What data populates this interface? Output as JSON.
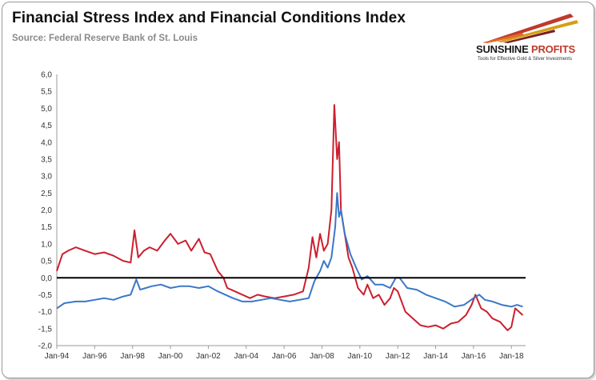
{
  "header": {
    "title": "Financial Stress Index and Financial Conditions Index",
    "source": "Source: Federal Reserve Bank of St. Louis"
  },
  "logo": {
    "name_main": "SUNSHINE",
    "name_accent": "PROFITS",
    "tagline": "Tools for Effective Gold & Silver Investments"
  },
  "colors": {
    "stress": "#cc1f2e",
    "conditions": "#3a78c8",
    "zero_line": "#000000",
    "logo_accent": "#c0392b"
  },
  "chart_data": {
    "type": "line",
    "title": "Financial Stress Index and Financial Conditions Index",
    "xlabel": "",
    "ylabel": "",
    "x_tick_labels": [
      "Jan-94",
      "Jan-96",
      "Jan-98",
      "Jan-00",
      "Jan-02",
      "Jan-04",
      "Jan-06",
      "Jan-08",
      "Jan-10",
      "Jan-12",
      "Jan-14",
      "Jan-16",
      "Jan-18"
    ],
    "y_tick_labels": [
      "6,0",
      "5,5",
      "5,0",
      "4,5",
      "4,0",
      "3,5",
      "3,0",
      "2,5",
      "2,0",
      "1,5",
      "1,0",
      "0,5",
      "0,0",
      "-0,5",
      "-1,0",
      "-1,5",
      "-2,0"
    ],
    "xlim": [
      1994.0,
      2018.75
    ],
    "ylim": [
      -2.0,
      6.0
    ],
    "zero_line": 0.0,
    "legend": "none",
    "series": [
      {
        "name": "Financial Stress Index",
        "color": "#cc1f2e",
        "x": [
          1994.0,
          1994.3,
          1994.6,
          1995.0,
          1995.5,
          1996.0,
          1996.5,
          1997.0,
          1997.5,
          1997.9,
          1998.1,
          1998.3,
          1998.6,
          1998.9,
          1999.3,
          1999.7,
          2000.0,
          2000.4,
          2000.8,
          2001.1,
          2001.5,
          2001.8,
          2002.1,
          2002.5,
          2002.8,
          2003.0,
          2003.4,
          2003.8,
          2004.2,
          2004.6,
          2005.0,
          2005.5,
          2006.0,
          2006.5,
          2007.0,
          2007.3,
          2007.5,
          2007.7,
          2007.9,
          2008.1,
          2008.3,
          2008.5,
          2008.65,
          2008.8,
          2008.9,
          2009.0,
          2009.2,
          2009.4,
          2009.6,
          2009.9,
          2010.2,
          2010.4,
          2010.7,
          2011.0,
          2011.3,
          2011.6,
          2011.8,
          2012.0,
          2012.4,
          2012.8,
          2013.2,
          2013.6,
          2014.0,
          2014.4,
          2014.8,
          2015.2,
          2015.6,
          2015.9,
          2016.1,
          2016.4,
          2016.7,
          2017.0,
          2017.4,
          2017.8,
          2018.0,
          2018.2,
          2018.4,
          2018.6
        ],
        "y": [
          0.2,
          0.7,
          0.8,
          0.9,
          0.8,
          0.7,
          0.75,
          0.65,
          0.5,
          0.45,
          1.4,
          0.6,
          0.8,
          0.9,
          0.8,
          1.1,
          1.3,
          1.0,
          1.1,
          0.8,
          1.15,
          0.75,
          0.7,
          0.2,
          0.0,
          -0.3,
          -0.4,
          -0.5,
          -0.6,
          -0.5,
          -0.55,
          -0.6,
          -0.55,
          -0.5,
          -0.4,
          0.3,
          1.2,
          0.6,
          1.3,
          0.8,
          1.0,
          2.0,
          5.1,
          3.5,
          4.0,
          2.0,
          1.3,
          0.6,
          0.3,
          -0.3,
          -0.5,
          -0.2,
          -0.6,
          -0.5,
          -0.8,
          -0.6,
          -0.3,
          -0.4,
          -1.0,
          -1.2,
          -1.4,
          -1.45,
          -1.4,
          -1.5,
          -1.35,
          -1.3,
          -1.1,
          -0.8,
          -0.5,
          -0.9,
          -1.0,
          -1.2,
          -1.3,
          -1.55,
          -1.45,
          -0.9,
          -1.0,
          -1.1
        ]
      },
      {
        "name": "Financial Conditions Index",
        "color": "#3a78c8",
        "x": [
          1994.0,
          1994.4,
          1995.0,
          1995.5,
          1996.0,
          1996.5,
          1997.0,
          1997.5,
          1997.9,
          1998.2,
          1998.4,
          1998.7,
          1999.0,
          1999.5,
          2000.0,
          2000.5,
          2001.0,
          2001.5,
          2002.0,
          2002.5,
          2002.9,
          2003.3,
          2003.8,
          2004.3,
          2004.8,
          2005.3,
          2005.8,
          2006.3,
          2006.8,
          2007.3,
          2007.6,
          2007.9,
          2008.1,
          2008.3,
          2008.5,
          2008.7,
          2008.8,
          2008.9,
          2009.0,
          2009.2,
          2009.5,
          2009.8,
          2010.1,
          2010.4,
          2010.8,
          2011.2,
          2011.6,
          2011.9,
          2012.1,
          2012.5,
          2013.0,
          2013.5,
          2014.0,
          2014.5,
          2015.0,
          2015.5,
          2016.0,
          2016.3,
          2016.6,
          2017.0,
          2017.5,
          2018.0,
          2018.3,
          2018.6
        ],
        "y": [
          -0.9,
          -0.75,
          -0.7,
          -0.7,
          -0.65,
          -0.6,
          -0.65,
          -0.55,
          -0.5,
          -0.05,
          -0.35,
          -0.3,
          -0.25,
          -0.2,
          -0.3,
          -0.25,
          -0.25,
          -0.3,
          -0.25,
          -0.4,
          -0.5,
          -0.6,
          -0.7,
          -0.7,
          -0.65,
          -0.6,
          -0.65,
          -0.7,
          -0.65,
          -0.6,
          -0.1,
          0.2,
          0.5,
          0.3,
          0.6,
          1.5,
          2.5,
          1.8,
          2.0,
          1.3,
          0.7,
          0.3,
          -0.05,
          0.05,
          -0.2,
          -0.2,
          -0.3,
          0.0,
          0.0,
          -0.3,
          -0.35,
          -0.5,
          -0.6,
          -0.7,
          -0.85,
          -0.8,
          -0.6,
          -0.5,
          -0.65,
          -0.7,
          -0.8,
          -0.85,
          -0.8,
          -0.85
        ]
      }
    ]
  }
}
